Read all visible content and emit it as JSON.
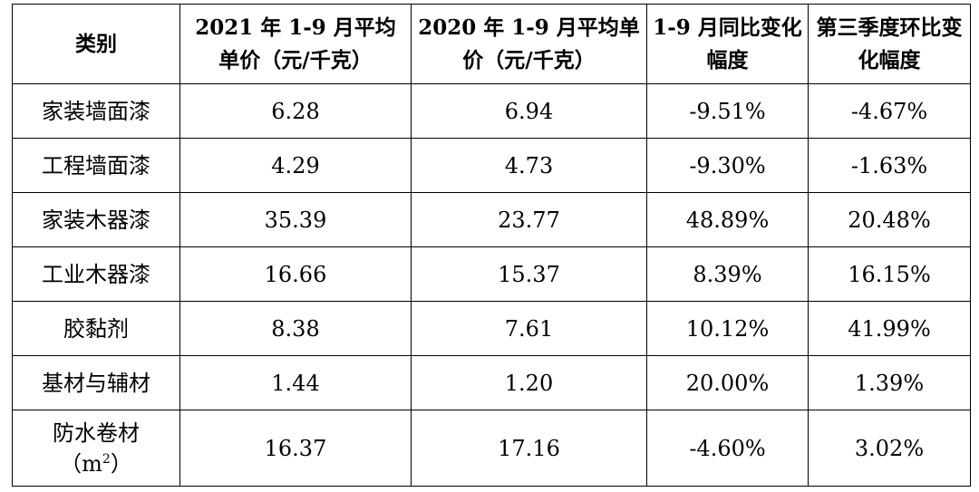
{
  "table": {
    "headers": {
      "category": "类别",
      "price_2021": "2021 年 1-9 月平均单价（元/千克）",
      "price_2020": "2020 年 1-9 月平均单价（元/千克）",
      "yoy_change": "1-9 月同比变化幅度",
      "qoq_change": "第三季度环比变化幅度"
    },
    "rows": [
      {
        "category": "家装墙面漆",
        "price_2021": "6.28",
        "price_2020": "6.94",
        "yoy_change": "-9.51%",
        "qoq_change": "-4.67%"
      },
      {
        "category": "工程墙面漆",
        "price_2021": "4.29",
        "price_2020": "4.73",
        "yoy_change": "-9.30%",
        "qoq_change": "-1.63%"
      },
      {
        "category": "家装木器漆",
        "price_2021": "35.39",
        "price_2020": "23.77",
        "yoy_change": "48.89%",
        "qoq_change": "20.48%"
      },
      {
        "category": "工业木器漆",
        "price_2021": "16.66",
        "price_2020": "15.37",
        "yoy_change": "8.39%",
        "qoq_change": "16.15%"
      },
      {
        "category": "胶黏剂",
        "price_2021": "8.38",
        "price_2020": "7.61",
        "yoy_change": "10.12%",
        "qoq_change": "41.99%"
      },
      {
        "category": "基材与辅材",
        "price_2021": "1.44",
        "price_2020": "1.20",
        "yoy_change": "20.00%",
        "qoq_change": "1.39%"
      },
      {
        "category": "防水卷材",
        "category_unit_open": "（m",
        "category_unit_sup": "2",
        "category_unit_close": "）",
        "price_2021": "16.37",
        "price_2020": "17.16",
        "yoy_change": "-4.60%",
        "qoq_change": "3.02%"
      }
    ]
  }
}
